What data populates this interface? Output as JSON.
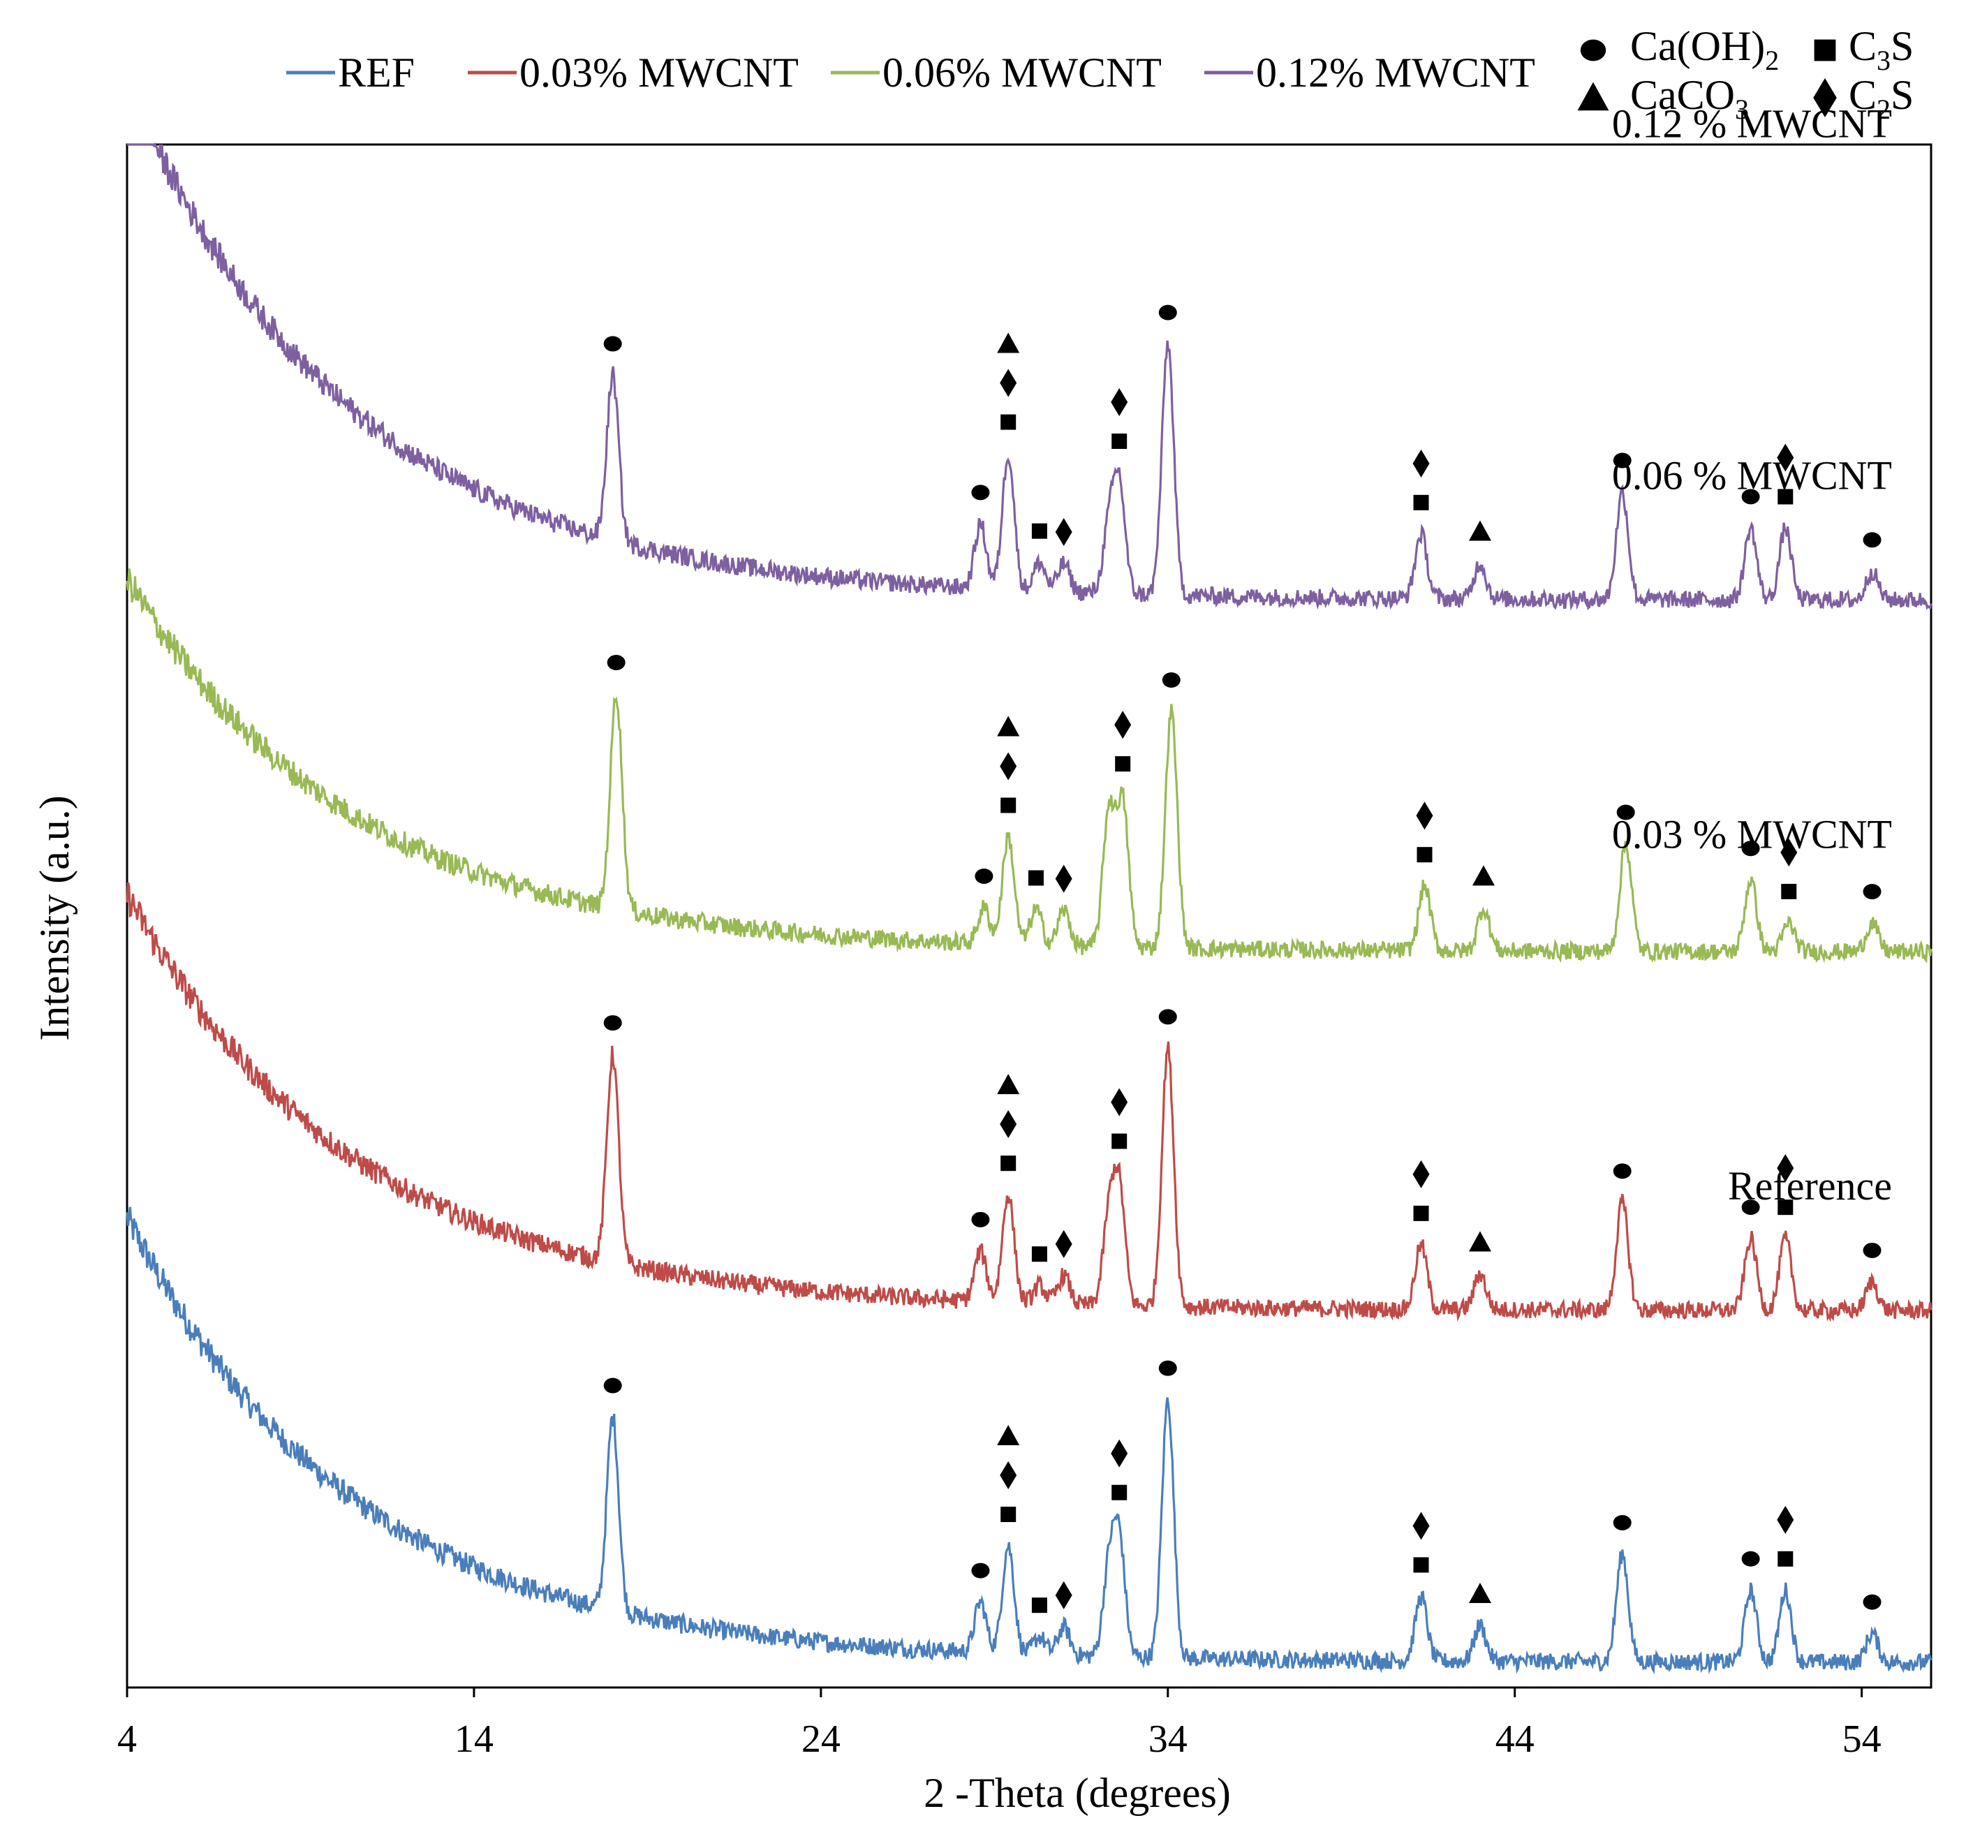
{
  "chart_data": {
    "type": "line",
    "title": "",
    "xlabel": "2 -Theta (degrees)",
    "ylabel": "Intensity (a.u.)",
    "xlim": [
      4,
      56
    ],
    "x_ticks": [
      4,
      14,
      24,
      34,
      44,
      54
    ],
    "y_ticks": [],
    "grid": false,
    "legend_placement": "top",
    "legend": {
      "series": [
        "REF",
        "0.03% MWCNT",
        "0.06% MWCNT",
        "0.12% MWCNT"
      ],
      "phases": [
        {
          "symbol": "circle",
          "label": "Ca(OH)",
          "sub": "2"
        },
        {
          "symbol": "square",
          "label": "C",
          "sub": "3",
          "suffix": "S"
        },
        {
          "symbol": "triangle",
          "label": "CaCO",
          "sub": "3"
        },
        {
          "symbol": "diamond",
          "label": "C",
          "sub": "2",
          "suffix": "S"
        }
      ]
    },
    "series": [
      {
        "name": "REF",
        "label": "Reference",
        "color": "#4a7ebb",
        "offset": 0,
        "background": {
          "start": 62,
          "decay_width": 6.5,
          "baseline": 3.5
        },
        "peaks": [
          {
            "x": 18.0,
            "h": 27
          },
          {
            "x": 28.6,
            "h": 7
          },
          {
            "x": 29.4,
            "h": 15
          },
          {
            "x": 30.3,
            "h": 2.5
          },
          {
            "x": 31.0,
            "h": 4
          },
          {
            "x": 32.3,
            "h": 12
          },
          {
            "x": 32.6,
            "h": 16
          },
          {
            "x": 34.0,
            "h": 36
          },
          {
            "x": 41.3,
            "h": 9
          },
          {
            "x": 43.0,
            "h": 5
          },
          {
            "x": 47.1,
            "h": 15
          },
          {
            "x": 50.8,
            "h": 10
          },
          {
            "x": 51.8,
            "h": 10
          },
          {
            "x": 54.3,
            "h": 4
          }
        ]
      },
      {
        "name": "0.03% MWCNT",
        "label": "0.03 % MWCNT",
        "color": "#be4b48",
        "offset": 49,
        "background": {
          "start": 58,
          "decay_width": 6.5,
          "baseline": 3.5
        },
        "peaks": [
          {
            "x": 18.0,
            "h": 29
          },
          {
            "x": 28.6,
            "h": 7
          },
          {
            "x": 29.4,
            "h": 15
          },
          {
            "x": 30.3,
            "h": 2.5
          },
          {
            "x": 31.0,
            "h": 4
          },
          {
            "x": 32.3,
            "h": 12
          },
          {
            "x": 32.6,
            "h": 16
          },
          {
            "x": 34.0,
            "h": 36
          },
          {
            "x": 41.3,
            "h": 9
          },
          {
            "x": 43.0,
            "h": 5
          },
          {
            "x": 47.1,
            "h": 15
          },
          {
            "x": 50.8,
            "h": 10
          },
          {
            "x": 51.8,
            "h": 10
          },
          {
            "x": 54.3,
            "h": 4
          }
        ]
      },
      {
        "name": "0.06% MWCNT",
        "label": "0.06 % MWCNT",
        "color": "#98b954",
        "offset": 99,
        "background": {
          "start": 52,
          "decay_width": 6.5,
          "baseline": 3.5
        },
        "peaks": [
          {
            "x": 18.1,
            "h": 30
          },
          {
            "x": 28.7,
            "h": 5
          },
          {
            "x": 29.4,
            "h": 15
          },
          {
            "x": 30.2,
            "h": 5
          },
          {
            "x": 31.0,
            "h": 5
          },
          {
            "x": 32.3,
            "h": 19
          },
          {
            "x": 32.7,
            "h": 20
          },
          {
            "x": 34.1,
            "h": 33
          },
          {
            "x": 41.4,
            "h": 9
          },
          {
            "x": 43.1,
            "h": 6
          },
          {
            "x": 47.2,
            "h": 15
          },
          {
            "x": 50.8,
            "h": 10
          },
          {
            "x": 51.9,
            "h": 4
          },
          {
            "x": 54.3,
            "h": 4
          }
        ]
      },
      {
        "name": "0.12% MWCNT",
        "label": "0.12 % MWCNT",
        "color": "#7d60a0",
        "offset": 148,
        "background": {
          "start": 72,
          "decay_width": 6.5,
          "baseline": 3.5
        },
        "peaks": [
          {
            "x": 18.0,
            "h": 23
          },
          {
            "x": 28.6,
            "h": 9
          },
          {
            "x": 29.4,
            "h": 19
          },
          {
            "x": 30.3,
            "h": 4
          },
          {
            "x": 31.0,
            "h": 4
          },
          {
            "x": 32.3,
            "h": 9
          },
          {
            "x": 32.6,
            "h": 15
          },
          {
            "x": 34.0,
            "h": 35
          },
          {
            "x": 41.3,
            "h": 9
          },
          {
            "x": 43.0,
            "h": 5
          },
          {
            "x": 47.1,
            "h": 15
          },
          {
            "x": 50.8,
            "h": 10
          },
          {
            "x": 51.8,
            "h": 10
          },
          {
            "x": 54.3,
            "h": 4
          }
        ]
      }
    ],
    "y_range_au": [
      0,
      215
    ],
    "peak_markers": [
      {
        "series": "REF",
        "marks": [
          {
            "x": 18.0,
            "sym": "circle"
          },
          {
            "x": 28.6,
            "sym": "circle"
          },
          {
            "x": 29.4,
            "sym": "square"
          },
          {
            "x": 29.4,
            "sym": "diamond"
          },
          {
            "x": 29.4,
            "sym": "triangle"
          },
          {
            "x": 30.3,
            "sym": "square"
          },
          {
            "x": 31.0,
            "sym": "diamond"
          },
          {
            "x": 32.6,
            "sym": "square"
          },
          {
            "x": 32.6,
            "sym": "diamond"
          },
          {
            "x": 34.0,
            "sym": "circle"
          },
          {
            "x": 41.3,
            "sym": "square"
          },
          {
            "x": 41.3,
            "sym": "diamond"
          },
          {
            "x": 43.0,
            "sym": "triangle"
          },
          {
            "x": 47.1,
            "sym": "circle"
          },
          {
            "x": 50.8,
            "sym": "circle"
          },
          {
            "x": 51.8,
            "sym": "square"
          },
          {
            "x": 51.8,
            "sym": "diamond"
          },
          {
            "x": 54.3,
            "sym": "circle"
          }
        ]
      },
      {
        "series": "0.03% MWCNT",
        "marks": [
          {
            "x": 18.0,
            "sym": "circle"
          },
          {
            "x": 28.6,
            "sym": "circle"
          },
          {
            "x": 29.4,
            "sym": "square"
          },
          {
            "x": 29.4,
            "sym": "diamond"
          },
          {
            "x": 29.4,
            "sym": "triangle"
          },
          {
            "x": 30.3,
            "sym": "square"
          },
          {
            "x": 31.0,
            "sym": "diamond"
          },
          {
            "x": 32.6,
            "sym": "square"
          },
          {
            "x": 32.6,
            "sym": "diamond"
          },
          {
            "x": 34.0,
            "sym": "circle"
          },
          {
            "x": 41.3,
            "sym": "square"
          },
          {
            "x": 41.3,
            "sym": "diamond"
          },
          {
            "x": 43.0,
            "sym": "triangle"
          },
          {
            "x": 47.1,
            "sym": "circle"
          },
          {
            "x": 50.8,
            "sym": "circle"
          },
          {
            "x": 51.8,
            "sym": "square"
          },
          {
            "x": 51.8,
            "sym": "diamond"
          },
          {
            "x": 54.3,
            "sym": "circle"
          }
        ]
      },
      {
        "series": "0.06% MWCNT",
        "marks": [
          {
            "x": 18.1,
            "sym": "circle"
          },
          {
            "x": 28.7,
            "sym": "circle"
          },
          {
            "x": 29.4,
            "sym": "square"
          },
          {
            "x": 29.4,
            "sym": "diamond"
          },
          {
            "x": 29.4,
            "sym": "triangle"
          },
          {
            "x": 30.2,
            "sym": "square"
          },
          {
            "x": 31.0,
            "sym": "diamond"
          },
          {
            "x": 32.7,
            "sym": "square"
          },
          {
            "x": 32.7,
            "sym": "diamond"
          },
          {
            "x": 34.1,
            "sym": "circle"
          },
          {
            "x": 41.4,
            "sym": "square"
          },
          {
            "x": 41.4,
            "sym": "diamond"
          },
          {
            "x": 43.1,
            "sym": "triangle"
          },
          {
            "x": 47.2,
            "sym": "circle"
          },
          {
            "x": 50.8,
            "sym": "circle"
          },
          {
            "x": 51.9,
            "sym": "square"
          },
          {
            "x": 51.9,
            "sym": "diamond"
          },
          {
            "x": 54.3,
            "sym": "circle"
          }
        ]
      },
      {
        "series": "0.12% MWCNT",
        "marks": [
          {
            "x": 18.0,
            "sym": "circle"
          },
          {
            "x": 28.6,
            "sym": "circle"
          },
          {
            "x": 29.4,
            "sym": "square"
          },
          {
            "x": 29.4,
            "sym": "diamond"
          },
          {
            "x": 29.4,
            "sym": "triangle"
          },
          {
            "x": 30.3,
            "sym": "square"
          },
          {
            "x": 31.0,
            "sym": "diamond"
          },
          {
            "x": 32.6,
            "sym": "square"
          },
          {
            "x": 32.6,
            "sym": "diamond"
          },
          {
            "x": 34.0,
            "sym": "circle"
          },
          {
            "x": 41.3,
            "sym": "square"
          },
          {
            "x": 41.3,
            "sym": "diamond"
          },
          {
            "x": 43.0,
            "sym": "triangle"
          },
          {
            "x": 47.1,
            "sym": "circle"
          },
          {
            "x": 50.8,
            "sym": "circle"
          },
          {
            "x": 51.8,
            "sym": "square"
          },
          {
            "x": 51.8,
            "sym": "diamond"
          },
          {
            "x": 54.3,
            "sym": "circle"
          }
        ]
      }
    ]
  }
}
